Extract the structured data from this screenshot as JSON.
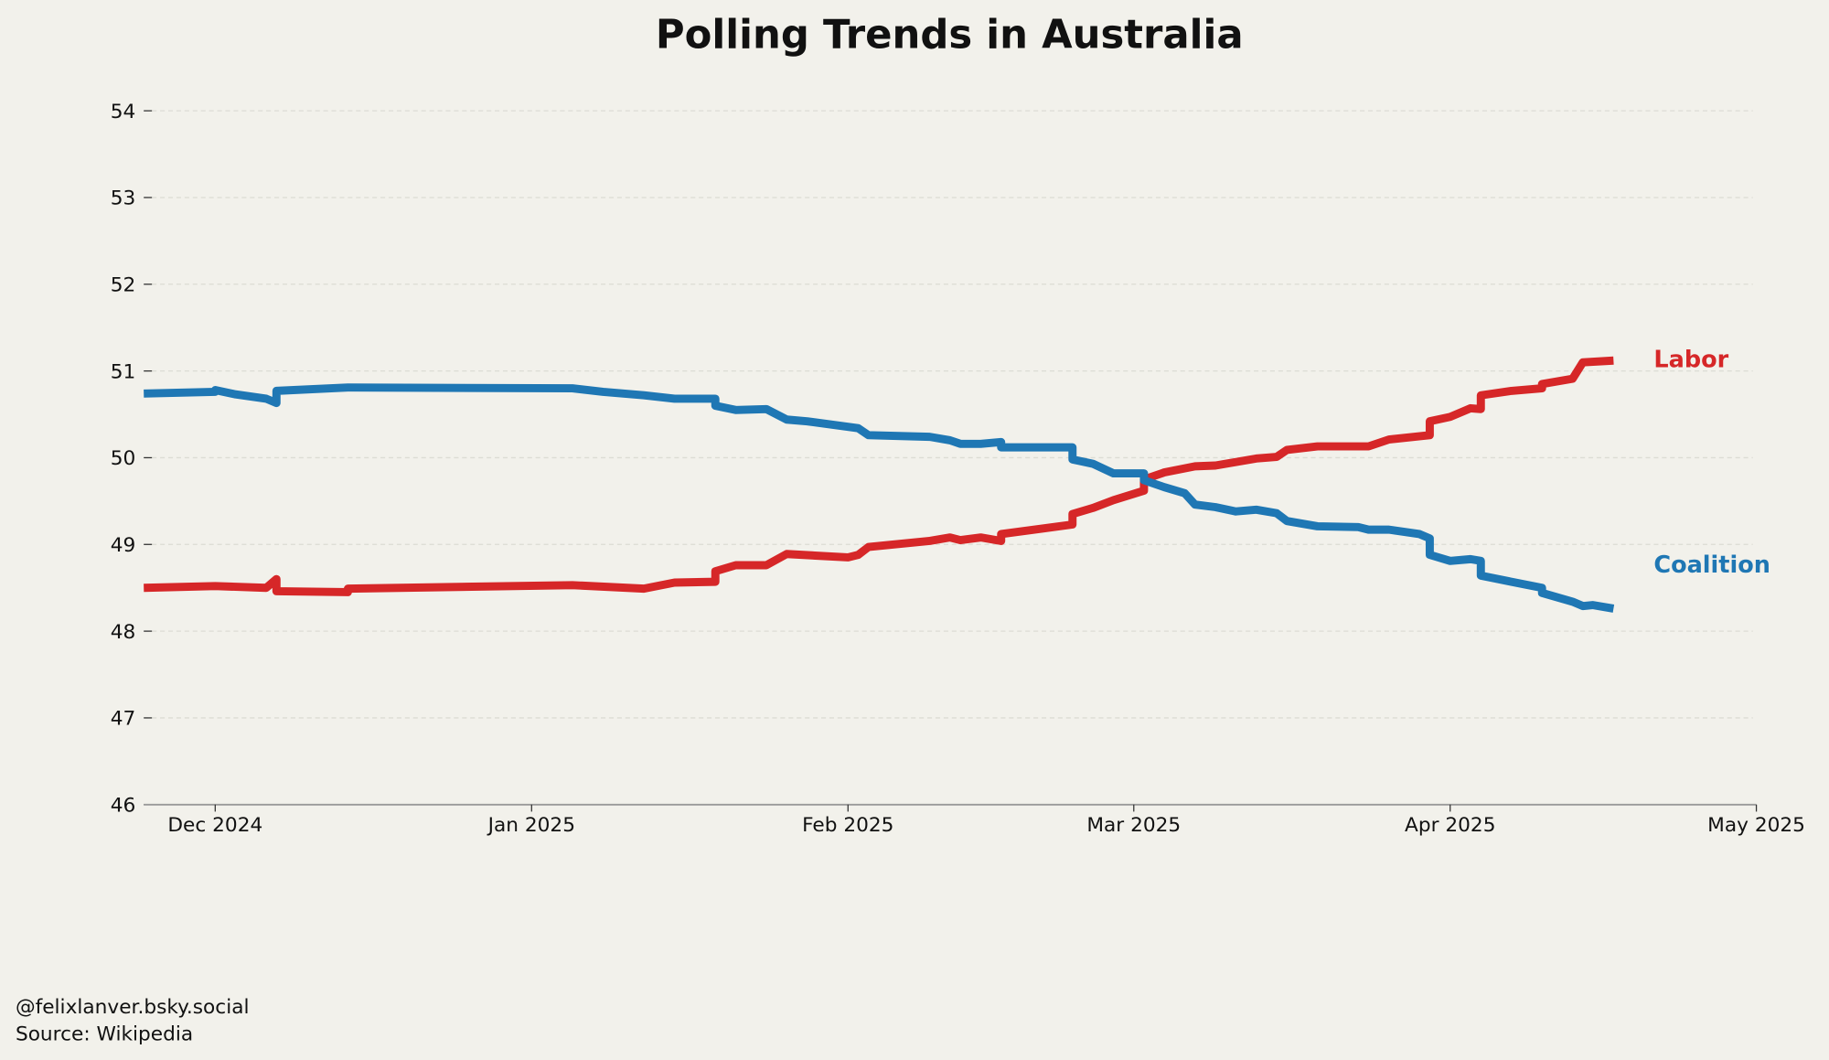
{
  "chart_data": {
    "type": "line",
    "title": "Polling Trends in Australia",
    "xlabel": "",
    "ylabel": "",
    "xlim": [
      "2024-11-24",
      "2025-05-01"
    ],
    "ylim": [
      46,
      54
    ],
    "yticks": [
      46,
      47,
      48,
      49,
      50,
      51,
      52,
      53,
      54
    ],
    "xticks": [
      {
        "date": "2024-12-01",
        "label": "Dec 2024"
      },
      {
        "date": "2025-01-01",
        "label": "Jan 2025"
      },
      {
        "date": "2025-02-01",
        "label": "Feb 2025"
      },
      {
        "date": "2025-03-01",
        "label": "Mar 2025"
      },
      {
        "date": "2025-04-01",
        "label": "Apr 2025"
      },
      {
        "date": "2025-05-01",
        "label": "May 2025"
      }
    ],
    "grid": "horizontal dashed",
    "legend": "direct labels at line ends (right)",
    "series": [
      {
        "name": "Labor",
        "color": "#d62728",
        "points": [
          [
            "2024-11-24",
            48.5
          ],
          [
            "2024-12-01",
            48.52
          ],
          [
            "2024-12-06",
            48.5
          ],
          [
            "2024-12-07",
            48.6
          ],
          [
            "2024-12-07",
            48.46
          ],
          [
            "2024-12-14",
            48.45
          ],
          [
            "2024-12-14",
            48.49
          ],
          [
            "2025-01-05",
            48.53
          ],
          [
            "2025-01-12",
            48.49
          ],
          [
            "2025-01-15",
            48.56
          ],
          [
            "2025-01-19",
            48.57
          ],
          [
            "2025-01-19",
            48.69
          ],
          [
            "2025-01-21",
            48.76
          ],
          [
            "2025-01-24",
            48.76
          ],
          [
            "2025-01-26",
            48.89
          ],
          [
            "2025-02-01",
            48.85
          ],
          [
            "2025-02-02",
            48.88
          ],
          [
            "2025-02-03",
            48.97
          ],
          [
            "2025-02-09",
            49.04
          ],
          [
            "2025-02-11",
            49.08
          ],
          [
            "2025-02-12",
            49.05
          ],
          [
            "2025-02-14",
            49.08
          ],
          [
            "2025-02-16",
            49.04
          ],
          [
            "2025-02-16",
            49.12
          ],
          [
            "2025-02-23",
            49.23
          ],
          [
            "2025-02-23",
            49.35
          ],
          [
            "2025-02-25",
            49.42
          ],
          [
            "2025-02-27",
            49.51
          ],
          [
            "2025-03-02",
            49.62
          ],
          [
            "2025-03-02",
            49.75
          ],
          [
            "2025-03-04",
            49.83
          ],
          [
            "2025-03-07",
            49.9
          ],
          [
            "2025-03-09",
            49.91
          ],
          [
            "2025-03-13",
            49.99
          ],
          [
            "2025-03-15",
            50.01
          ],
          [
            "2025-03-16",
            50.09
          ],
          [
            "2025-03-19",
            50.13
          ],
          [
            "2025-03-24",
            50.13
          ],
          [
            "2025-03-26",
            50.21
          ],
          [
            "2025-03-30",
            50.26
          ],
          [
            "2025-03-30",
            50.42
          ],
          [
            "2025-04-01",
            50.47
          ],
          [
            "2025-04-03",
            50.57
          ],
          [
            "2025-04-04",
            50.56
          ],
          [
            "2025-04-04",
            50.72
          ],
          [
            "2025-04-07",
            50.77
          ],
          [
            "2025-04-10",
            50.8
          ],
          [
            "2025-04-10",
            50.85
          ],
          [
            "2025-04-13",
            50.91
          ],
          [
            "2025-04-14",
            51.1
          ],
          [
            "2025-04-17",
            51.12
          ]
        ]
      },
      {
        "name": "Coalition",
        "color": "#1f77b4",
        "points": [
          [
            "2024-11-24",
            50.74
          ],
          [
            "2024-12-01",
            50.76
          ],
          [
            "2024-12-01",
            50.78
          ],
          [
            "2024-12-03",
            50.73
          ],
          [
            "2024-12-06",
            50.68
          ],
          [
            "2024-12-07",
            50.63
          ],
          [
            "2024-12-07",
            50.77
          ],
          [
            "2024-12-14",
            50.81
          ],
          [
            "2025-01-05",
            50.8
          ],
          [
            "2025-01-08",
            50.76
          ],
          [
            "2025-01-12",
            50.72
          ],
          [
            "2025-01-15",
            50.68
          ],
          [
            "2025-01-19",
            50.68
          ],
          [
            "2025-01-19",
            50.6
          ],
          [
            "2025-01-21",
            50.55
          ],
          [
            "2025-01-24",
            50.56
          ],
          [
            "2025-01-26",
            50.44
          ],
          [
            "2025-01-28",
            50.42
          ],
          [
            "2025-02-02",
            50.34
          ],
          [
            "2025-02-03",
            50.26
          ],
          [
            "2025-02-09",
            50.24
          ],
          [
            "2025-02-11",
            50.2
          ],
          [
            "2025-02-12",
            50.16
          ],
          [
            "2025-02-14",
            50.16
          ],
          [
            "2025-02-16",
            50.18
          ],
          [
            "2025-02-16",
            50.12
          ],
          [
            "2025-02-23",
            50.12
          ],
          [
            "2025-02-23",
            49.98
          ],
          [
            "2025-02-25",
            49.93
          ],
          [
            "2025-02-27",
            49.82
          ],
          [
            "2025-03-02",
            49.82
          ],
          [
            "2025-03-02",
            49.74
          ],
          [
            "2025-03-04",
            49.66
          ],
          [
            "2025-03-06",
            49.59
          ],
          [
            "2025-03-07",
            49.46
          ],
          [
            "2025-03-09",
            49.43
          ],
          [
            "2025-03-11",
            49.38
          ],
          [
            "2025-03-13",
            49.4
          ],
          [
            "2025-03-15",
            49.36
          ],
          [
            "2025-03-16",
            49.27
          ],
          [
            "2025-03-19",
            49.21
          ],
          [
            "2025-03-23",
            49.2
          ],
          [
            "2025-03-24",
            49.17
          ],
          [
            "2025-03-26",
            49.17
          ],
          [
            "2025-03-29",
            49.12
          ],
          [
            "2025-03-30",
            49.07
          ],
          [
            "2025-03-30",
            48.88
          ],
          [
            "2025-04-01",
            48.81
          ],
          [
            "2025-04-03",
            48.83
          ],
          [
            "2025-04-04",
            48.81
          ],
          [
            "2025-04-04",
            48.64
          ],
          [
            "2025-04-07",
            48.57
          ],
          [
            "2025-04-10",
            48.5
          ],
          [
            "2025-04-10",
            48.44
          ],
          [
            "2025-04-13",
            48.34
          ],
          [
            "2025-04-14",
            48.29
          ],
          [
            "2025-04-15",
            48.3
          ],
          [
            "2025-04-17",
            48.26
          ]
        ]
      }
    ]
  },
  "footer": {
    "credit": "@felixlanver.bsky.social",
    "source": "Source: Wikipedia"
  }
}
